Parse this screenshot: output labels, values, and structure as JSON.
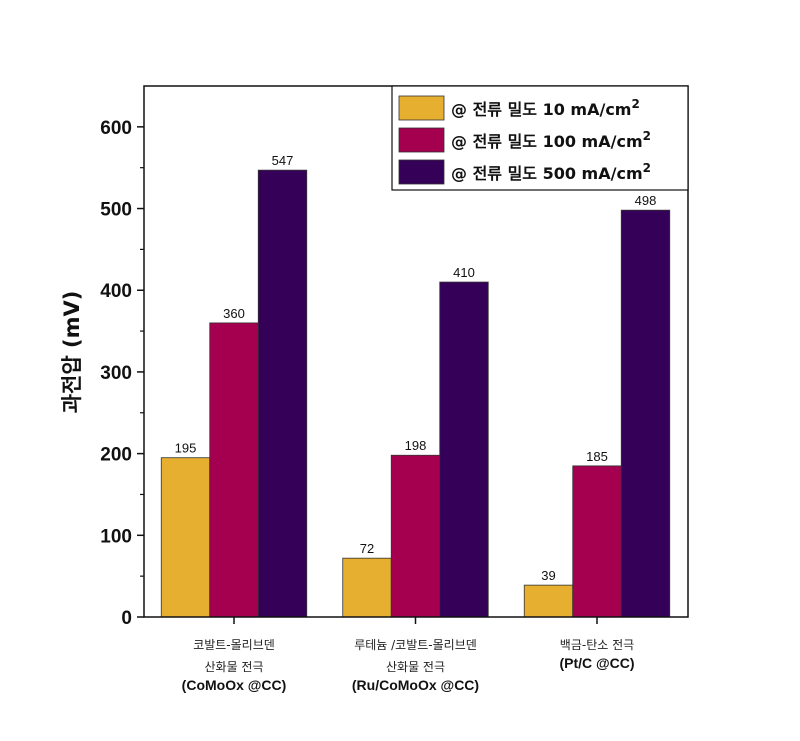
{
  "chart_data": {
    "type": "bar",
    "title": "",
    "xlabel": "",
    "ylabel": "과전압 (mV)",
    "ylim": [
      0,
      650
    ],
    "yticks": [
      0,
      100,
      200,
      300,
      400,
      500,
      600
    ],
    "minor_tick_step": 50,
    "grid": false,
    "legend_position": "top-right",
    "categories": [
      {
        "lines": [
          "코발트-몰리브덴",
          "산화물 전극"
        ],
        "code": "(CoMoOx @CC)"
      },
      {
        "lines": [
          "루테늄 /코발트-몰리브덴",
          "산화물 전극"
        ],
        "code": "(Ru/CoMoOx @CC)"
      },
      {
        "lines": [
          "백금-탄소 전극"
        ],
        "code": "(Pt/C @CC)"
      }
    ],
    "series": [
      {
        "name": "@ 전류 밀도 10 mA/cm",
        "sup": "2",
        "color": "#E6AF30",
        "values": [
          195,
          72,
          39
        ]
      },
      {
        "name": "@ 전류 밀도 100 mA/cm",
        "sup": "2",
        "color": "#A50050",
        "values": [
          360,
          198,
          185
        ]
      },
      {
        "name": "@ 전류 밀도 500 mA/cm",
        "sup": "2",
        "color": "#350058",
        "values": [
          547,
          410,
          498
        ]
      }
    ]
  }
}
